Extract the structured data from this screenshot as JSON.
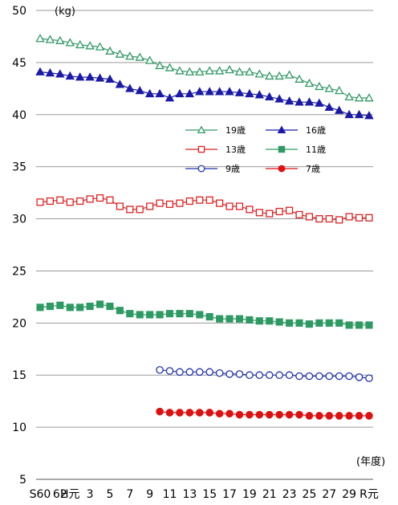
{
  "chart_data": {
    "type": "line",
    "ylabel": "(kg)",
    "xlabel": "(年度)",
    "ylim": [
      5,
      50
    ],
    "yticks": [
      5,
      10,
      15,
      20,
      25,
      30,
      35,
      40,
      45,
      50
    ],
    "grid": true,
    "legend_position": "right-middle",
    "x": [
      "S60",
      "61",
      "62",
      "H元",
      "2",
      "3",
      "4",
      "5",
      "6",
      "7",
      "8",
      "9",
      "10",
      "11",
      "12",
      "13",
      "14",
      "15",
      "16",
      "17",
      "18",
      "19",
      "20",
      "21",
      "22",
      "23",
      "24",
      "25",
      "26",
      "27",
      "28",
      "29",
      "30",
      "R元"
    ],
    "x_tick_labels": [
      "S60",
      "62",
      "H元",
      "3",
      "5",
      "7",
      "9",
      "11",
      "13",
      "15",
      "17",
      "19",
      "21",
      "23",
      "25",
      "27",
      "29",
      "R元"
    ],
    "series": [
      {
        "name": "19歳",
        "color": "#339966",
        "marker": "triangle-open",
        "values": [
          47.3,
          47.2,
          47.1,
          46.9,
          46.7,
          46.6,
          46.5,
          46.1,
          45.8,
          45.6,
          45.5,
          45.2,
          44.7,
          44.5,
          44.2,
          44.1,
          44.1,
          44.2,
          44.2,
          44.3,
          44.1,
          44.1,
          43.9,
          43.7,
          43.7,
          43.8,
          43.4,
          43.0,
          42.7,
          42.5,
          42.3,
          41.7,
          41.6,
          41.6
        ]
      },
      {
        "name": "16歳",
        "color": "#1a1aa6",
        "marker": "triangle-filled",
        "values": [
          44.1,
          44.0,
          43.9,
          43.7,
          43.6,
          43.6,
          43.5,
          43.4,
          42.9,
          42.5,
          42.3,
          42.0,
          42.0,
          41.6,
          42.0,
          42.0,
          42.2,
          42.2,
          42.2,
          42.2,
          42.1,
          42.0,
          41.9,
          41.7,
          41.5,
          41.3,
          41.2,
          41.2,
          41.1,
          40.7,
          40.4,
          40.0,
          40.0,
          39.9
        ]
      },
      {
        "name": "13歳",
        "color": "#dd2222",
        "marker": "square-open",
        "values": [
          31.6,
          31.7,
          31.8,
          31.6,
          31.7,
          31.9,
          32.0,
          31.8,
          31.2,
          30.9,
          30.9,
          31.2,
          31.5,
          31.4,
          31.5,
          31.7,
          31.8,
          31.8,
          31.5,
          31.2,
          31.2,
          30.9,
          30.6,
          30.5,
          30.7,
          30.8,
          30.4,
          30.2,
          30.0,
          30.0,
          29.9,
          30.2,
          30.1,
          30.1
        ]
      },
      {
        "name": "11歳",
        "color": "#2e9a63",
        "marker": "square-filled",
        "values": [
          21.5,
          21.6,
          21.7,
          21.5,
          21.5,
          21.6,
          21.8,
          21.6,
          21.2,
          20.9,
          20.8,
          20.8,
          20.8,
          20.9,
          20.9,
          20.9,
          20.8,
          20.6,
          20.4,
          20.4,
          20.4,
          20.3,
          20.2,
          20.2,
          20.1,
          20.0,
          20.0,
          19.9,
          20.0,
          20.0,
          20.0,
          19.8,
          19.8,
          19.8
        ]
      },
      {
        "name": "9歳",
        "color": "#2233aa",
        "marker": "circle-open",
        "values": [
          null,
          null,
          null,
          null,
          null,
          null,
          null,
          null,
          null,
          null,
          null,
          null,
          15.5,
          15.4,
          15.3,
          15.3,
          15.3,
          15.3,
          15.2,
          15.1,
          15.1,
          15.0,
          15.0,
          15.0,
          15.0,
          15.0,
          14.9,
          14.9,
          14.9,
          14.9,
          14.9,
          14.9,
          14.8,
          14.7
        ]
      },
      {
        "name": "7歳",
        "color": "#dd1111",
        "marker": "circle-filled",
        "values": [
          null,
          null,
          null,
          null,
          null,
          null,
          null,
          null,
          null,
          null,
          null,
          null,
          11.5,
          11.4,
          11.4,
          11.4,
          11.4,
          11.4,
          11.3,
          11.3,
          11.2,
          11.2,
          11.2,
          11.2,
          11.2,
          11.2,
          11.2,
          11.1,
          11.1,
          11.1,
          11.1,
          11.1,
          11.1,
          11.1
        ]
      }
    ]
  }
}
